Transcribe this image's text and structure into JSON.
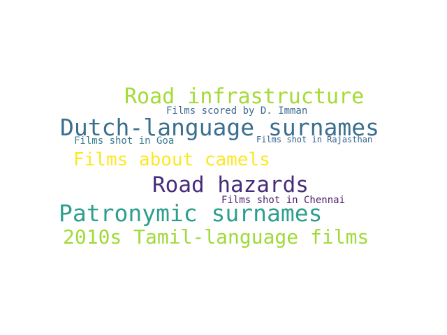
{
  "words": [
    {
      "text": "Road infrastructure",
      "color": "#a5db36"
    },
    {
      "text": "Films scored by D. Imman",
      "color": "#3d6b8f"
    },
    {
      "text": "Dutch-language surnames",
      "color": "#3b6f8f"
    },
    {
      "text": "Films shot in Goa",
      "color": "#3a7b8e"
    },
    {
      "text": "Films shot in Rajasthan",
      "color": "#35608d"
    },
    {
      "text": "Films about camels",
      "color": "#fde725"
    },
    {
      "text": "Road hazards",
      "color": "#472c7a"
    },
    {
      "text": "Films shot in Chennai",
      "color": "#4a1d6e"
    },
    {
      "text": "Patronymic surnames",
      "color": "#2e9f8f"
    },
    {
      "text": "2010s Tamil-language films",
      "color": "#a0da39"
    }
  ]
}
